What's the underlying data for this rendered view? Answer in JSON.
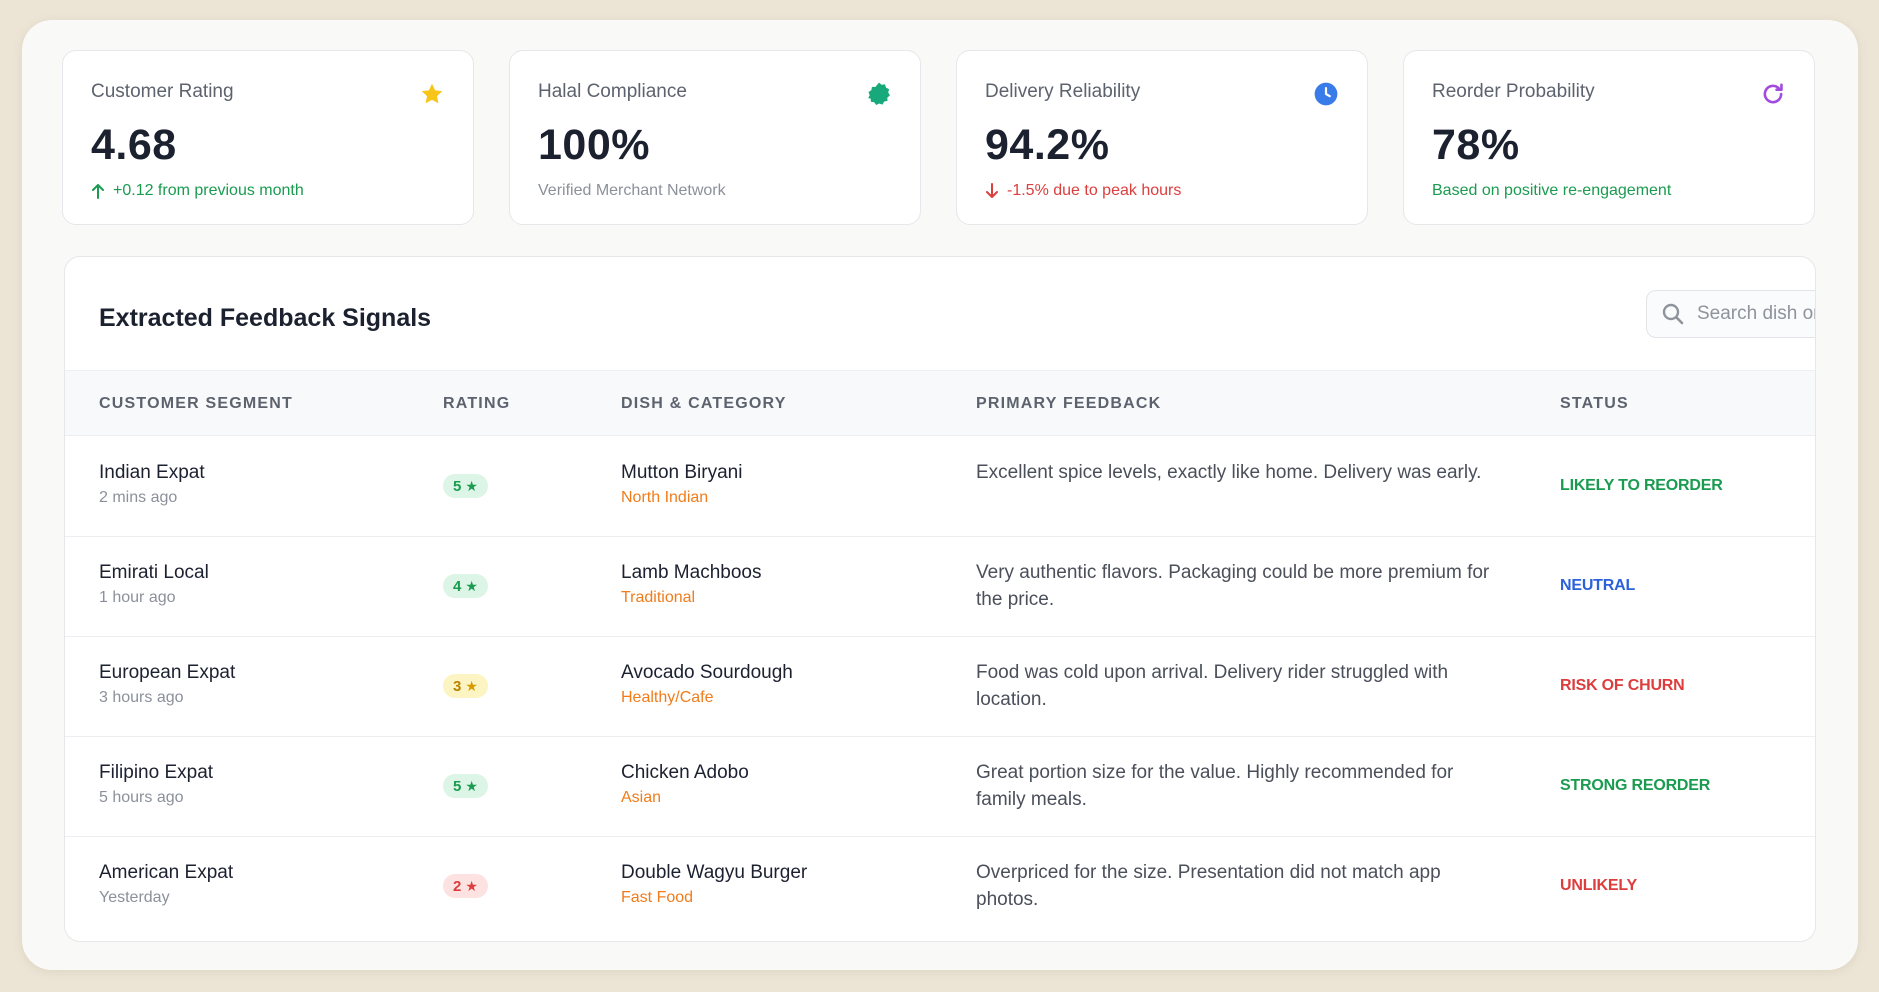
{
  "colors": {
    "green": "#1a9b50",
    "red": "#dc3d3d",
    "blue": "#2b62d9",
    "orange": "#f07c1c",
    "star_yellow": "#f7c51a",
    "badge_green_icon": "#18a97a",
    "clock_blue": "#3a7bea",
    "refresh_purple": "#a24bdf"
  },
  "kpis": [
    {
      "title": "Customer Rating",
      "value": "4.68",
      "sub": "+0.12 from previous month",
      "trend": "up",
      "icon": "star-icon"
    },
    {
      "title": "Halal Compliance",
      "value": "100%",
      "sub": "Verified Merchant Network",
      "trend": "none",
      "icon": "badge-check-icon"
    },
    {
      "title": "Delivery Reliability",
      "value": "94.2%",
      "sub": "-1.5% due to peak hours",
      "trend": "down",
      "icon": "clock-icon"
    },
    {
      "title": "Reorder Probability",
      "value": "78%",
      "sub": "Based on positive re-engagement",
      "trend": "positive",
      "icon": "refresh-icon"
    }
  ],
  "panel": {
    "title": "Extracted Feedback Signals",
    "search_placeholder": "Search dish or sentiment..."
  },
  "table": {
    "headers": [
      "CUSTOMER SEGMENT",
      "RATING",
      "DISH & CATEGORY",
      "PRIMARY FEEDBACK",
      "STATUS"
    ],
    "rows": [
      {
        "segment": "Indian Expat",
        "time": "2 mins ago",
        "rating": "5",
        "rating_tone": "green",
        "dish": "Mutton Biryani",
        "category": "North Indian",
        "feedback": "Excellent spice levels, exactly like home. Delivery was early.",
        "status": "LIKELY TO REORDER",
        "status_tone": "green"
      },
      {
        "segment": "Emirati Local",
        "time": "1 hour ago",
        "rating": "4",
        "rating_tone": "green",
        "dish": "Lamb Machboos",
        "category": "Traditional",
        "feedback": "Very authentic flavors. Packaging could be more premium for the price.",
        "status": "NEUTRAL",
        "status_tone": "blue"
      },
      {
        "segment": "European Expat",
        "time": "3 hours ago",
        "rating": "3",
        "rating_tone": "yellow",
        "dish": "Avocado Sourdough",
        "category": "Healthy/Cafe",
        "feedback": "Food was cold upon arrival. Delivery rider struggled with location.",
        "status": "RISK OF CHURN",
        "status_tone": "red"
      },
      {
        "segment": "Filipino Expat",
        "time": "5 hours ago",
        "rating": "5",
        "rating_tone": "green",
        "dish": "Chicken Adobo",
        "category": "Asian",
        "feedback": "Great portion size for the value. Highly recommended for family meals.",
        "status": "STRONG REORDER",
        "status_tone": "green"
      },
      {
        "segment": "American Expat",
        "time": "Yesterday",
        "rating": "2",
        "rating_tone": "red",
        "dish": "Double Wagyu Burger",
        "category": "Fast Food",
        "feedback": "Overpriced for the size. Presentation did not match app photos.",
        "status": "UNLIKELY",
        "status_tone": "red"
      }
    ]
  }
}
